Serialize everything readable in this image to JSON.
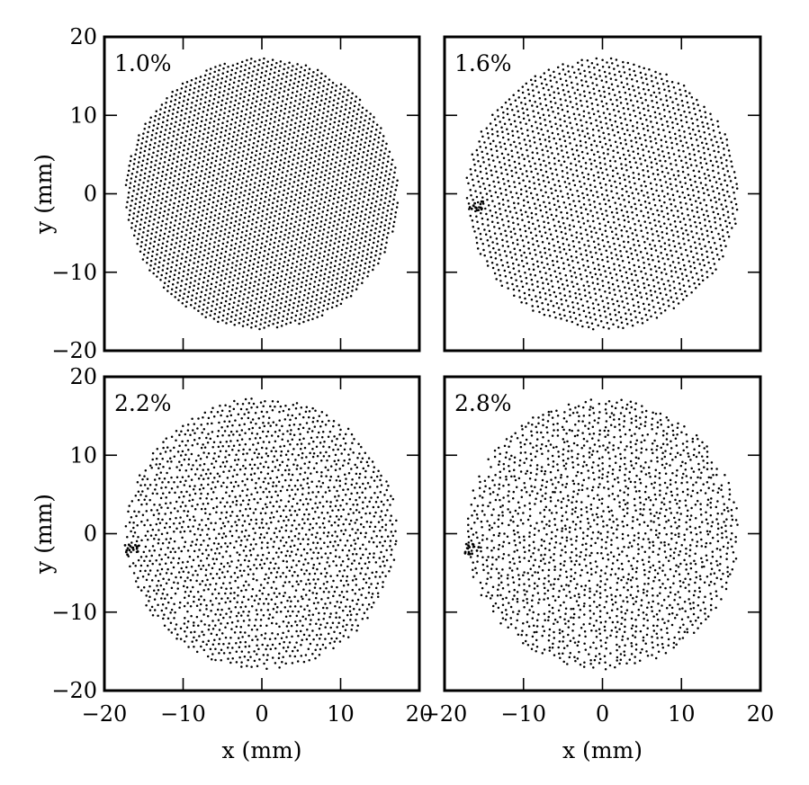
{
  "chart_data": [
    {
      "type": "scatter",
      "panel_label": "1.0%",
      "xlim": [
        -20,
        20
      ],
      "ylim": [
        -20,
        20
      ],
      "xticks": [
        -20,
        -10,
        0,
        10,
        20
      ],
      "yticks": [
        -20,
        -10,
        0,
        10,
        20
      ],
      "xlabel": "",
      "ylabel": "y (mm)",
      "show_x_tick_labels": false,
      "show_y_tick_labels": true,
      "point_cloud": {
        "center": [
          0,
          0
        ],
        "radius_mm": 17.3,
        "lattice_spacing_mm": 0.62,
        "disorder": 0.05
      }
    },
    {
      "type": "scatter",
      "panel_label": "1.6%",
      "xlim": [
        -20,
        20
      ],
      "ylim": [
        -20,
        20
      ],
      "xticks": [
        -20,
        -10,
        0,
        10,
        20
      ],
      "yticks": [
        -20,
        -10,
        0,
        10,
        20
      ],
      "xlabel": "",
      "ylabel": "",
      "show_x_tick_labels": false,
      "show_y_tick_labels": false,
      "point_cloud": {
        "center": [
          0,
          0
        ],
        "radius_mm": 17.3,
        "lattice_spacing_mm": 0.72,
        "disorder": 0.12,
        "cluster_at": [
          -16,
          -1.5
        ]
      }
    },
    {
      "type": "scatter",
      "panel_label": "2.2%",
      "xlim": [
        -20,
        20
      ],
      "ylim": [
        -20,
        20
      ],
      "xticks": [
        -20,
        -10,
        0,
        10,
        20
      ],
      "yticks": [
        -20,
        -10,
        0,
        10,
        20
      ],
      "xlabel": "x (mm)",
      "ylabel": "y (mm)",
      "show_x_tick_labels": true,
      "show_y_tick_labels": true,
      "point_cloud": {
        "center": [
          0,
          0
        ],
        "radius_mm": 17.3,
        "lattice_spacing_mm": 0.74,
        "disorder": 0.22,
        "cluster_at": [
          -16.5,
          -2
        ]
      }
    },
    {
      "type": "scatter",
      "panel_label": "2.8%",
      "xlim": [
        -20,
        20
      ],
      "ylim": [
        -20,
        20
      ],
      "xticks": [
        -20,
        -10,
        0,
        10,
        20
      ],
      "yticks": [
        -20,
        -10,
        0,
        10,
        20
      ],
      "xlabel": "x (mm)",
      "ylabel": "",
      "show_x_tick_labels": true,
      "show_y_tick_labels": false,
      "point_cloud": {
        "center": [
          0,
          0
        ],
        "radius_mm": 17.3,
        "lattice_spacing_mm": 0.76,
        "disorder": 0.3,
        "cluster_at": [
          -16.5,
          -2
        ]
      }
    }
  ],
  "colors": {
    "points": "#000000",
    "frame": "#000000",
    "background": "#ffffff"
  }
}
